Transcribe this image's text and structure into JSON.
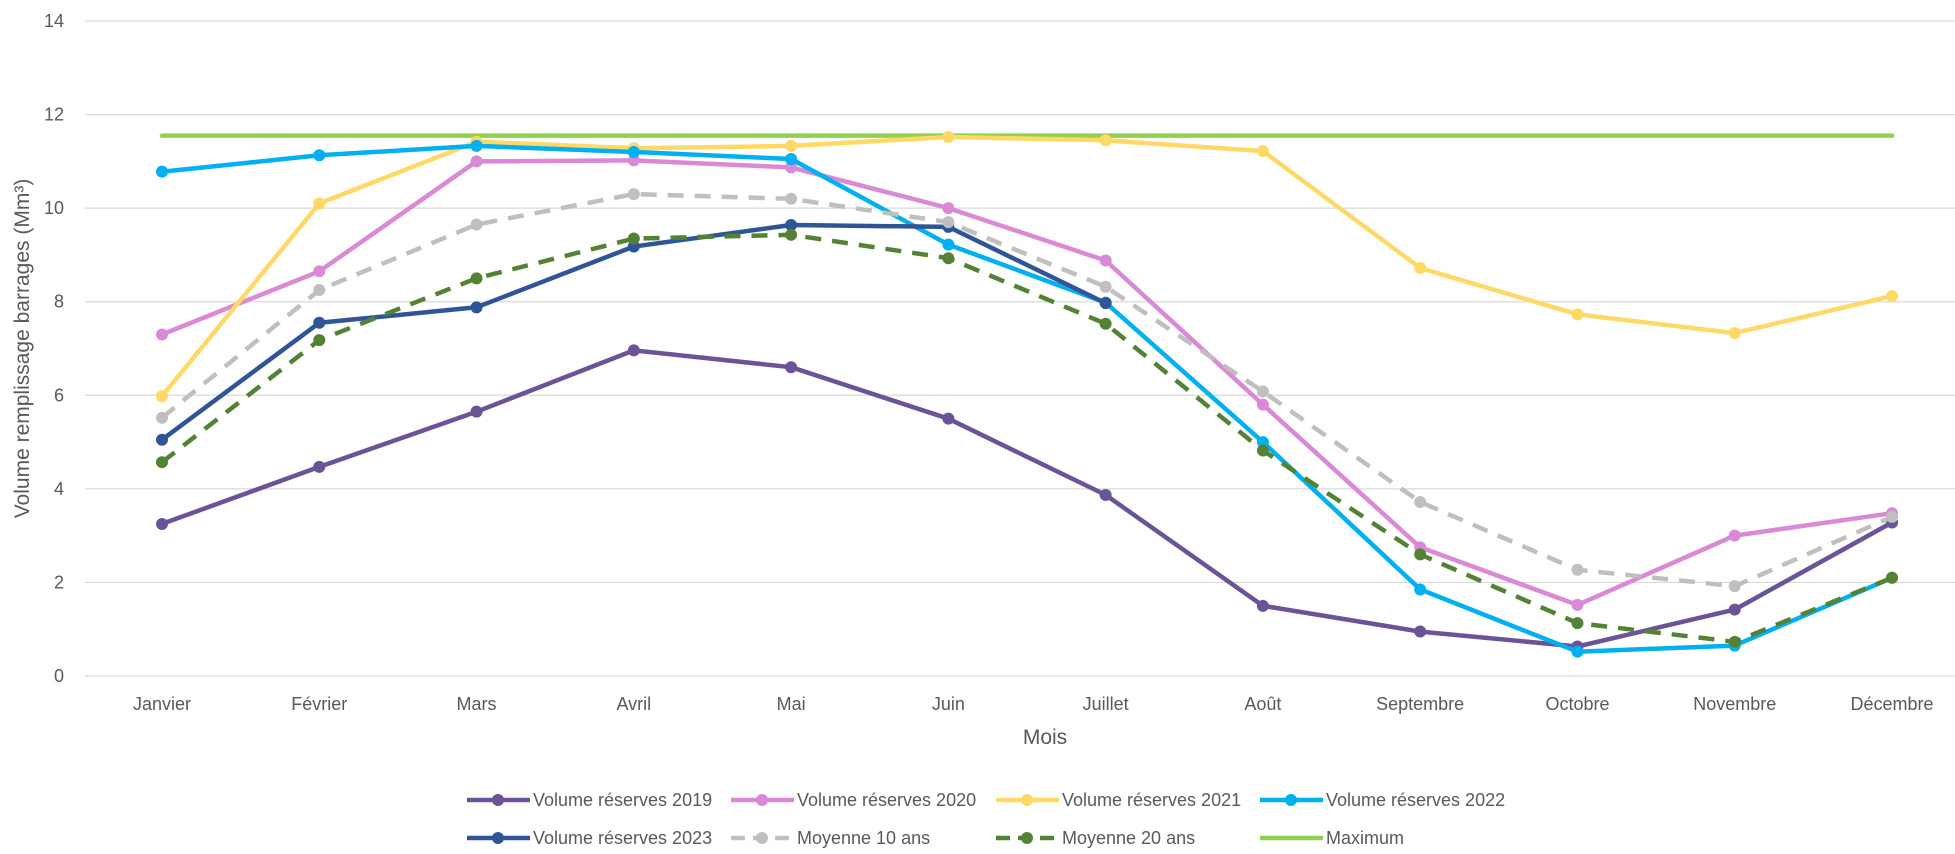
{
  "chart_data": {
    "type": "line",
    "title": "",
    "xlabel": "Mois",
    "ylabel": "Volume remplissage barrages (Mm³)",
    "ylim": [
      0,
      14
    ],
    "yticks": [
      0,
      2,
      4,
      6,
      8,
      10,
      12,
      14
    ],
    "grid": "horizontal",
    "legend_position": "bottom",
    "categories": [
      "Janvier",
      "Février",
      "Mars",
      "Avril",
      "Mai",
      "Juin",
      "Juillet",
      "Août",
      "Septembre",
      "Octobre",
      "Novembre",
      "Décembre"
    ],
    "series": [
      {
        "name": "Volume réserves 2019",
        "color": "#6A5396",
        "dashed": false,
        "markers": true,
        "values": [
          3.25,
          4.47,
          5.65,
          6.96,
          6.6,
          5.5,
          3.87,
          1.5,
          0.95,
          0.63,
          1.42,
          3.28
        ]
      },
      {
        "name": "Volume réserves 2020",
        "color": "#DA89D6",
        "dashed": false,
        "markers": true,
        "values": [
          7.3,
          8.65,
          11.0,
          11.02,
          10.87,
          10.0,
          8.88,
          5.8,
          2.75,
          1.52,
          3.0,
          3.48
        ]
      },
      {
        "name": "Volume réserves 2021",
        "color": "#FFD966",
        "dashed": false,
        "markers": true,
        "values": [
          5.98,
          10.1,
          11.42,
          11.28,
          11.33,
          11.52,
          11.45,
          11.22,
          8.72,
          7.73,
          7.33,
          8.12
        ]
      },
      {
        "name": "Volume réserves 2022",
        "color": "#00B0F0",
        "dashed": false,
        "markers": true,
        "values": [
          10.78,
          11.13,
          11.33,
          11.2,
          11.05,
          9.22,
          7.98,
          5.0,
          1.85,
          0.52,
          0.65,
          2.1
        ]
      },
      {
        "name": "Volume réserves 2023",
        "color": "#2F5597",
        "dashed": false,
        "markers": true,
        "values": [
          5.05,
          7.55,
          7.88,
          9.18,
          9.64,
          9.6,
          7.97,
          null,
          null,
          null,
          null,
          null
        ]
      },
      {
        "name": "Moyenne 10 ans",
        "color": "#BFBFBF",
        "dashed": true,
        "markers": true,
        "values": [
          5.52,
          8.25,
          9.65,
          10.3,
          10.2,
          9.7,
          8.32,
          6.08,
          3.72,
          2.27,
          1.92,
          3.4
        ]
      },
      {
        "name": "Moyenne 20 ans",
        "color": "#548235",
        "dashed": true,
        "markers": true,
        "values": [
          4.57,
          7.18,
          8.5,
          9.35,
          9.43,
          8.93,
          7.53,
          4.82,
          2.6,
          1.13,
          0.73,
          2.1
        ]
      },
      {
        "name": "Maximum",
        "color": "#92D050",
        "dashed": false,
        "markers": false,
        "values": [
          11.55,
          11.55,
          11.55,
          11.55,
          11.55,
          11.55,
          11.55,
          11.55,
          11.55,
          11.55,
          11.55,
          11.55
        ]
      }
    ]
  }
}
